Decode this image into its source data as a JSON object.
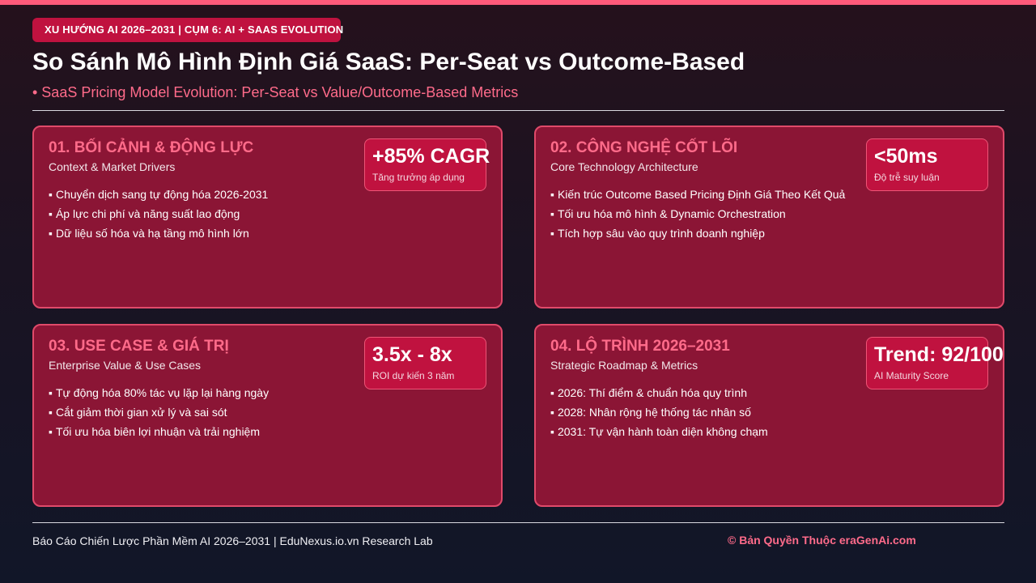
{
  "header": {
    "tag": "XU HƯỚNG AI 2026–2031 | CỤM 6: AI + SAAS EVOLUTION",
    "title": "So Sánh Mô Hình Định Giá SaaS: Per-Seat vs Outcome-Based",
    "subtitle": "• SaaS Pricing Model Evolution: Per-Seat vs Value/Outcome-Based Metrics"
  },
  "cards": [
    {
      "title": "01. BỐI CẢNH & ĐỘNG LỰC",
      "subtitle": "Context & Market Drivers",
      "bullets": [
        "Chuyển dịch sang tự động hóa 2026-2031",
        "Áp lực chi phí và năng suất lao động",
        "Dữ liệu số hóa và hạ tầng mô hình lớn"
      ],
      "metric": {
        "value": "+85% CAGR",
        "label": "Tăng trưởng áp dụng"
      }
    },
    {
      "title": "02. CÔNG NGHỆ CỐT LÕI",
      "subtitle": "Core Technology Architecture",
      "bullets": [
        "Kiến trúc Outcome Based Pricing Định Giá Theo Kết Quả",
        "Tối ưu hóa mô hình & Dynamic Orchestration",
        "Tích hợp sâu vào quy trình doanh nghiệp"
      ],
      "metric": {
        "value": "<50ms",
        "label": "Độ trễ suy luận"
      }
    },
    {
      "title": "03. USE CASE & GIÁ TRỊ",
      "subtitle": "Enterprise Value & Use Cases",
      "bullets": [
        "Tự động hóa 80% tác vụ lặp lại hàng ngày",
        "Cắt giảm thời gian xử lý và sai sót",
        "Tối ưu hóa biên lợi nhuận và trải nghiệm"
      ],
      "metric": {
        "value": "3.5x - 8x",
        "label": "ROI dự kiến 3 năm"
      }
    },
    {
      "title": "04. LỘ TRÌNH 2026–2031",
      "subtitle": "Strategic Roadmap & Metrics",
      "bullets": [
        "2026: Thí điểm & chuẩn hóa quy trình",
        "2028: Nhân rộng hệ thống tác nhân số",
        "2031: Tự vận hành toàn diện không chạm"
      ],
      "metric": {
        "value": "Trend: 92/100",
        "label": "AI Maturity Score"
      }
    }
  ],
  "footer": {
    "left": "Báo Cáo Chiến Lược Phần Mềm AI 2026–2031 | EduNexus.io.vn Research Lab",
    "right": "© Bản Quyền Thuộc eraGenAi.com"
  },
  "bullet_char": "▪",
  "colors": {
    "accent": "#ff6b8a",
    "card_bg": "#8b1535",
    "card_border": "#e04a6a",
    "tag_bg": "#c0123f",
    "metric_bg": "#c0123f"
  }
}
